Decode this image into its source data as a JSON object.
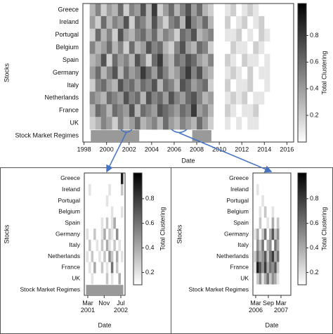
{
  "chart_data": [
    {
      "type": "heatmap",
      "rows": [
        "Greece",
        "Ireland",
        "Portugal",
        "Belgium",
        "Spain",
        "Germany",
        "Italy",
        "Netherlands",
        "France",
        "UK",
        "Stock Market Regimes"
      ],
      "xlabel": "Date",
      "ylabel": "Stocks",
      "colorbar_label": "Total Clustering",
      "xlim": [
        1997.9,
        2016.6
      ],
      "xticks": [
        1998,
        2000,
        2002,
        2004,
        2006,
        2008,
        2010,
        2012,
        2014,
        2016
      ],
      "clim": [
        0,
        1.04
      ],
      "colorbar_ticks": [
        0.2,
        0.4,
        0.6,
        0.8
      ],
      "bins": [
        1998.5,
        1999,
        1999.5,
        2000,
        2000.5,
        2001,
        2001.5,
        2002,
        2002.5,
        2003,
        2003.5,
        2004,
        2004.5,
        2005,
        2005.5,
        2006,
        2006.5,
        2007,
        2007.5,
        2008,
        2008.5,
        2009,
        2009.5,
        2010,
        2010.5,
        2011,
        2011.5,
        2012,
        2012.5,
        2013,
        2013.5,
        2014,
        2014.5
      ],
      "values": [
        [
          0.3,
          0.5,
          0.2,
          0.4,
          0.3,
          0.6,
          0.2,
          0.5,
          0.4,
          0.7,
          0.3,
          0.8,
          0.2,
          0.4,
          0.6,
          0.3,
          0.5,
          0.7,
          0.4,
          0.6,
          0.3,
          0.2,
          null,
          null,
          0.1,
          0.2,
          null,
          0.1,
          0.2,
          0.1,
          null,
          null
        ],
        [
          0.4,
          0.2,
          0.6,
          0.3,
          0.5,
          0.4,
          0.7,
          0.2,
          0.6,
          0.5,
          0.3,
          0.7,
          0.4,
          0.2,
          0.5,
          0.6,
          0.3,
          0.8,
          0.5,
          0.4,
          0.6,
          0.3,
          null,
          null,
          0.2,
          null,
          0.1,
          0.2,
          null,
          0.1,
          0.2,
          null
        ],
        [
          0.2,
          0.6,
          0.3,
          0.5,
          0.2,
          0.7,
          0.4,
          0.3,
          0.5,
          0.6,
          0.4,
          0.6,
          0.3,
          0.5,
          0.4,
          0.2,
          0.6,
          0.5,
          0.7,
          0.3,
          0.4,
          0.5,
          null,
          null,
          0.1,
          0.1,
          0.2,
          null,
          0.1,
          null,
          0.2,
          0.1
        ],
        [
          0.5,
          0.3,
          0.4,
          0.6,
          0.3,
          0.5,
          0.2,
          0.6,
          0.3,
          0.4,
          0.7,
          0.5,
          0.6,
          0.3,
          0.2,
          0.5,
          0.7,
          0.4,
          0.3,
          0.6,
          0.5,
          0.2,
          null,
          null,
          null,
          0.2,
          0.1,
          0.1,
          null,
          0.2,
          0.1,
          null
        ],
        [
          0.3,
          0.4,
          0.7,
          0.2,
          0.6,
          0.4,
          0.5,
          0.3,
          0.7,
          0.5,
          0.2,
          0.6,
          0.8,
          0.4,
          0.3,
          0.6,
          0.5,
          0.7,
          0.6,
          0.4,
          0.3,
          0.5,
          null,
          null,
          0.2,
          0.1,
          null,
          0.2,
          0.1,
          0.1,
          null,
          0.1
        ],
        [
          0.4,
          0.6,
          0.3,
          0.5,
          0.7,
          0.3,
          0.6,
          0.4,
          0.5,
          0.8,
          0.6,
          0.4,
          0.7,
          0.5,
          0.3,
          0.4,
          0.6,
          0.8,
          0.5,
          0.7,
          0.4,
          0.3,
          null,
          null,
          0.1,
          0.2,
          0.1,
          null,
          0.2,
          null,
          0.1,
          0.1
        ],
        [
          0.2,
          0.5,
          0.6,
          0.4,
          0.3,
          0.7,
          0.5,
          0.6,
          0.4,
          0.6,
          0.5,
          0.7,
          0.3,
          0.6,
          0.5,
          0.3,
          0.7,
          0.6,
          0.4,
          0.5,
          0.6,
          0.2,
          null,
          null,
          0.2,
          null,
          0.1,
          0.1,
          0.2,
          null,
          null,
          0.1
        ],
        [
          0.5,
          0.4,
          0.3,
          0.6,
          0.5,
          0.4,
          0.7,
          0.5,
          0.6,
          0.3,
          0.7,
          0.5,
          0.6,
          0.4,
          0.7,
          0.5,
          0.4,
          0.6,
          0.7,
          0.5,
          0.3,
          0.4,
          null,
          null,
          0.1,
          0.2,
          0.1,
          0.2,
          null,
          0.1,
          0.1,
          null
        ],
        [
          0.3,
          0.6,
          0.5,
          0.3,
          0.6,
          0.5,
          0.4,
          0.7,
          0.3,
          0.6,
          0.5,
          0.4,
          0.7,
          0.6,
          0.5,
          0.4,
          0.6,
          0.5,
          0.8,
          0.4,
          0.5,
          0.3,
          null,
          null,
          0.2,
          0.1,
          null,
          0.1,
          0.1,
          0.2,
          null,
          null
        ],
        [
          0.2,
          0.3,
          0.5,
          0.4,
          0.2,
          0.5,
          0.3,
          0.4,
          0.6,
          0.3,
          0.4,
          0.5,
          0.3,
          0.6,
          0.4,
          0.3,
          0.5,
          0.4,
          0.3,
          0.6,
          0.4,
          0.2,
          null,
          null,
          0.1,
          null,
          0.1,
          null,
          0.1,
          0.1,
          null,
          null
        ]
      ],
      "regimes": [
        [
          1998.6,
          2002.9
        ],
        [
          2007.6,
          2009.3
        ]
      ]
    },
    {
      "type": "heatmap",
      "rows": [
        "Greece",
        "Ireland",
        "Portugal",
        "Belgium",
        "Spain",
        "Germany",
        "Italy",
        "Netherlands",
        "France",
        "UK",
        "Stock Market Regimes"
      ],
      "xlabel": "Date",
      "ylabel": "Stocks",
      "colorbar_label": "Total Clustering",
      "xlim": [
        2001.03,
        2002.67
      ],
      "xticks": [
        {
          "value": 2001.17,
          "label": "Mar 2001"
        },
        {
          "value": 2001.83,
          "label": "Nov"
        },
        {
          "value": 2002.5,
          "label": "Jul 2002"
        }
      ],
      "clim": [
        0.1,
        1.01
      ],
      "colorbar_ticks": [
        0.2,
        0.4,
        0.6,
        0.8
      ],
      "bins": [
        2001.1,
        2001.2,
        2001.3,
        2001.4,
        2001.5,
        2001.6,
        2001.7,
        2001.8,
        2001.9,
        2002,
        2002.1,
        2002.2,
        2002.3,
        2002.4,
        2002.5,
        2002.6
      ],
      "values": [
        [
          null,
          null,
          null,
          null,
          null,
          null,
          null,
          null,
          null,
          null,
          null,
          null,
          null,
          null,
          0.9
        ],
        [
          null,
          0.2,
          null,
          0.1,
          null,
          null,
          null,
          null,
          null,
          0.2,
          null,
          null,
          null,
          null,
          0.3
        ],
        [
          null,
          null,
          0.1,
          null,
          null,
          null,
          null,
          null,
          0.2,
          null,
          null,
          0.1,
          null,
          null,
          null
        ],
        [
          null,
          null,
          null,
          null,
          0.1,
          null,
          null,
          null,
          null,
          null,
          0.2,
          null,
          null,
          null,
          0.2
        ],
        [
          null,
          0.1,
          null,
          null,
          null,
          null,
          0.2,
          null,
          0.3,
          null,
          0.2,
          0.4,
          null,
          null,
          null
        ],
        [
          0.2,
          null,
          null,
          0.3,
          null,
          null,
          0.2,
          0.4,
          null,
          0.3,
          0.2,
          null,
          0.5,
          null,
          null
        ],
        [
          null,
          0.3,
          null,
          null,
          0.2,
          null,
          0.3,
          null,
          0.4,
          0.2,
          null,
          0.3,
          null,
          0.2,
          null
        ],
        [
          0.2,
          null,
          0.3,
          null,
          null,
          0.2,
          null,
          0.3,
          null,
          0.5,
          0.3,
          null,
          0.4,
          null,
          0.2
        ],
        [
          null,
          0.2,
          null,
          0.4,
          null,
          null,
          0.3,
          null,
          0.2,
          null,
          0.6,
          null,
          0.3,
          null,
          null
        ],
        [
          null,
          null,
          0.2,
          null,
          null,
          0.1,
          null,
          null,
          0.3,
          null,
          0.2,
          null,
          null,
          0.4,
          null
        ]
      ],
      "regimes": [
        [
          2001.1,
          2002.6
        ]
      ]
    },
    {
      "type": "heatmap",
      "rows": [
        "Greece",
        "Ireland",
        "Portugal",
        "Belgium",
        "Spain",
        "Germany",
        "Italy",
        "Netherlands",
        "France",
        "UK",
        "Stock Market Regimes"
      ],
      "xlabel": "Date",
      "ylabel": "Stocks",
      "colorbar_label": "Total Clustering",
      "xlim": [
        2006.06,
        2007.56
      ],
      "xticks": [
        {
          "value": 2006.17,
          "label": "Mar 2006"
        },
        {
          "value": 2006.67,
          "label": "Sep"
        },
        {
          "value": 2007.17,
          "label": "Mar 2007"
        }
      ],
      "clim": [
        0.1,
        1.01
      ],
      "colorbar_ticks": [
        0.2,
        0.4,
        0.6,
        0.8
      ],
      "bins": [
        2006.1,
        2006.2,
        2006.3,
        2006.4,
        2006.5,
        2006.6,
        2006.7,
        2006.8,
        2006.9,
        2007,
        2007.1,
        2007.2,
        2007.3,
        2007.4,
        2007.5
      ],
      "values": [
        [
          null,
          0.1,
          null,
          null,
          null,
          null,
          null,
          null,
          null,
          null,
          null,
          null,
          null,
          null
        ],
        [
          null,
          0.2,
          0.1,
          null,
          null,
          null,
          null,
          null,
          null,
          null,
          null,
          null,
          null,
          null
        ],
        [
          null,
          0.1,
          null,
          0.2,
          null,
          null,
          null,
          null,
          0.1,
          null,
          null,
          null,
          null,
          null
        ],
        [
          null,
          null,
          0.2,
          null,
          0.3,
          null,
          null,
          0.2,
          null,
          0.1,
          null,
          null,
          null,
          null
        ],
        [
          null,
          0.1,
          0.3,
          null,
          null,
          0.2,
          null,
          0.4,
          null,
          0.3,
          null,
          null,
          null,
          null
        ],
        [
          0.2,
          0.4,
          null,
          0.3,
          0.6,
          null,
          0.4,
          0.7,
          0.3,
          0.5,
          null,
          null,
          null,
          null
        ],
        [
          null,
          0.5,
          0.3,
          0.6,
          null,
          0.4,
          0.5,
          null,
          0.6,
          0.4,
          null,
          null,
          null,
          null
        ],
        [
          0.3,
          0.6,
          0.4,
          0.5,
          0.7,
          0.3,
          0.6,
          0.8,
          0.4,
          0.6,
          null,
          null,
          null,
          null
        ],
        [
          0.2,
          0.9,
          0.7,
          0.5,
          0.8,
          0.4,
          0.6,
          0.5,
          0.7,
          0.3,
          null,
          null,
          null,
          null
        ],
        [
          null,
          0.3,
          0.5,
          0.2,
          0.4,
          0.6,
          0.3,
          0.5,
          0.4,
          0.2,
          null,
          null,
          null,
          null
        ]
      ]
    }
  ]
}
